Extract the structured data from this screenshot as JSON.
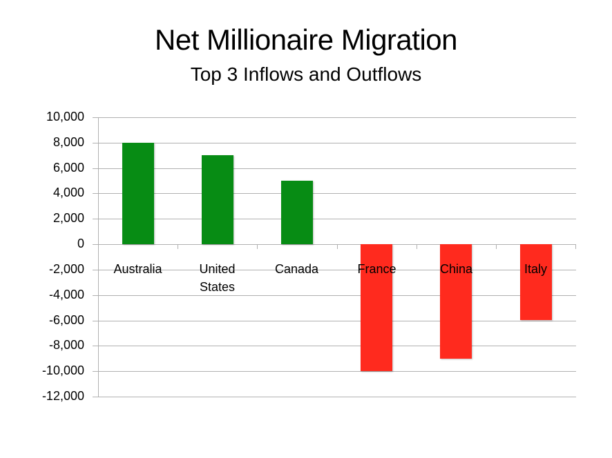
{
  "chart_data": {
    "type": "bar",
    "title": "Net Millionaire Migration",
    "subtitle": "Top 3 Inflows and Outflows",
    "categories": [
      "Australia",
      "United States",
      "Canada",
      "France",
      "China",
      "Italy"
    ],
    "category_lines": [
      [
        "Australia"
      ],
      [
        "United",
        "States"
      ],
      [
        "Canada"
      ],
      [
        "France"
      ],
      [
        "China"
      ],
      [
        "Italy"
      ]
    ],
    "values": [
      8000,
      7000,
      5000,
      -10000,
      -9000,
      -6000
    ],
    "colors": [
      "#078c14",
      "#078c14",
      "#078c14",
      "#ff2a1e",
      "#ff2a1e",
      "#ff2a1e"
    ],
    "xlabel": "",
    "ylabel": "",
    "ylim": [
      -12000,
      10000
    ],
    "yticks": [
      10000,
      8000,
      6000,
      4000,
      2000,
      0,
      -2000,
      -4000,
      -6000,
      -8000,
      -10000,
      -12000
    ],
    "ytick_labels": [
      "10,000",
      "8,000",
      "6,000",
      "4,000",
      "2,000",
      "0",
      "-2,000",
      "-4,000",
      "-6,000",
      "-8,000",
      "-10,000",
      "-12,000"
    ],
    "grid": true,
    "legend": null
  },
  "colors": {
    "inflow": "#078c14",
    "outflow": "#ff2a1e",
    "grid": "#b0b0b0"
  }
}
